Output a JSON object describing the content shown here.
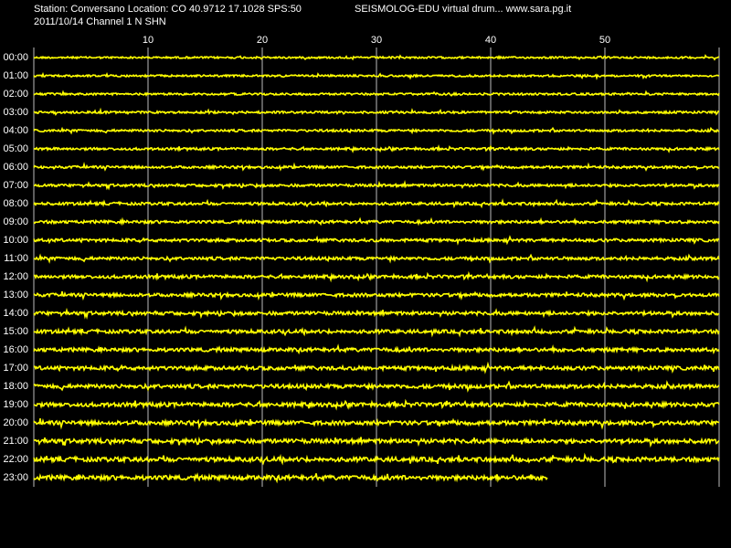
{
  "chart_data": {
    "type": "drum",
    "title": "Station: Conversano Location: CO 40.9712 17.1028 SPS:50",
    "subtitle": "SEISMOLOG-EDU virtual drum... www.sara.pg.it",
    "info": "2011/10/14  Channel 1 N SHN",
    "xlim": [
      0,
      60
    ],
    "xticks": [
      10,
      20,
      30,
      40,
      50
    ],
    "grid": true,
    "color": "#ffff00",
    "categories": [
      "00:00",
      "01:00",
      "02:00",
      "03:00",
      "04:00",
      "05:00",
      "06:00",
      "07:00",
      "08:00",
      "09:00",
      "10:00",
      "11:00",
      "12:00",
      "13:00",
      "14:00",
      "15:00",
      "16:00",
      "17:00",
      "18:00",
      "19:00",
      "20:00",
      "21:00",
      "22:00",
      "23:00"
    ],
    "values": [
      60,
      60,
      60,
      60,
      60,
      60,
      60,
      60,
      60,
      60,
      60,
      60,
      60,
      60,
      60,
      60,
      60,
      60,
      60,
      60,
      60,
      60,
      60,
      45
    ]
  }
}
